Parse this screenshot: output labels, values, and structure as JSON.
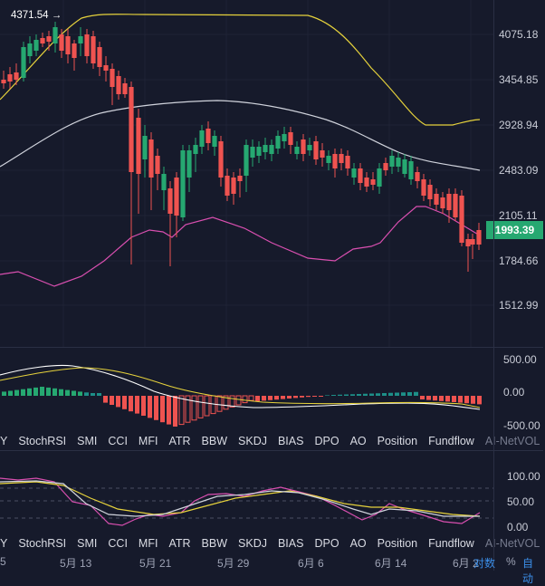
{
  "price_axis": {
    "labels": [
      "4075.18",
      "3454.85",
      "2928.94",
      "2483.09",
      "2105.11",
      "1784.66",
      "1512.99"
    ]
  },
  "current_price": "1993.39",
  "high_marker": "4371.54 →",
  "left_edge_label": "5",
  "macd_axis": {
    "labels": [
      "500.00",
      "0.00",
      "-500.00"
    ]
  },
  "kdj_axis": {
    "labels": [
      "100.00",
      "50.00",
      "0.00"
    ]
  },
  "indicator_tabs_1": [
    "Y",
    "StochRSI",
    "SMI",
    "CCI",
    "MFI",
    "ATR",
    "BBW",
    "SKDJ",
    "BIAS",
    "DPO",
    "AO",
    "Position",
    "Fundflow",
    "AI-NetVOL"
  ],
  "indicator_tabs_2": [
    "Y",
    "StochRSI",
    "SMI",
    "CCI",
    "MFI",
    "ATR",
    "BBW",
    "SKDJ",
    "BIAS",
    "DPO",
    "AO",
    "Position",
    "Fundflow",
    "AI-NetVOL"
  ],
  "date_axis": {
    "labels": [
      "5月 13",
      "5月 21",
      "5月 29",
      "6月 6",
      "6月 14",
      "6月 2"
    ]
  },
  "scale_controls": {
    "log": "对数",
    "percent": "%",
    "auto": "自动"
  },
  "colors": {
    "up": "#26a871",
    "down": "#ef5350",
    "bb_upper": "#e6d23c",
    "bb_mid": "#d0d3dc",
    "bb_lower": "#d94fb0",
    "background": "#161a2b"
  }
}
